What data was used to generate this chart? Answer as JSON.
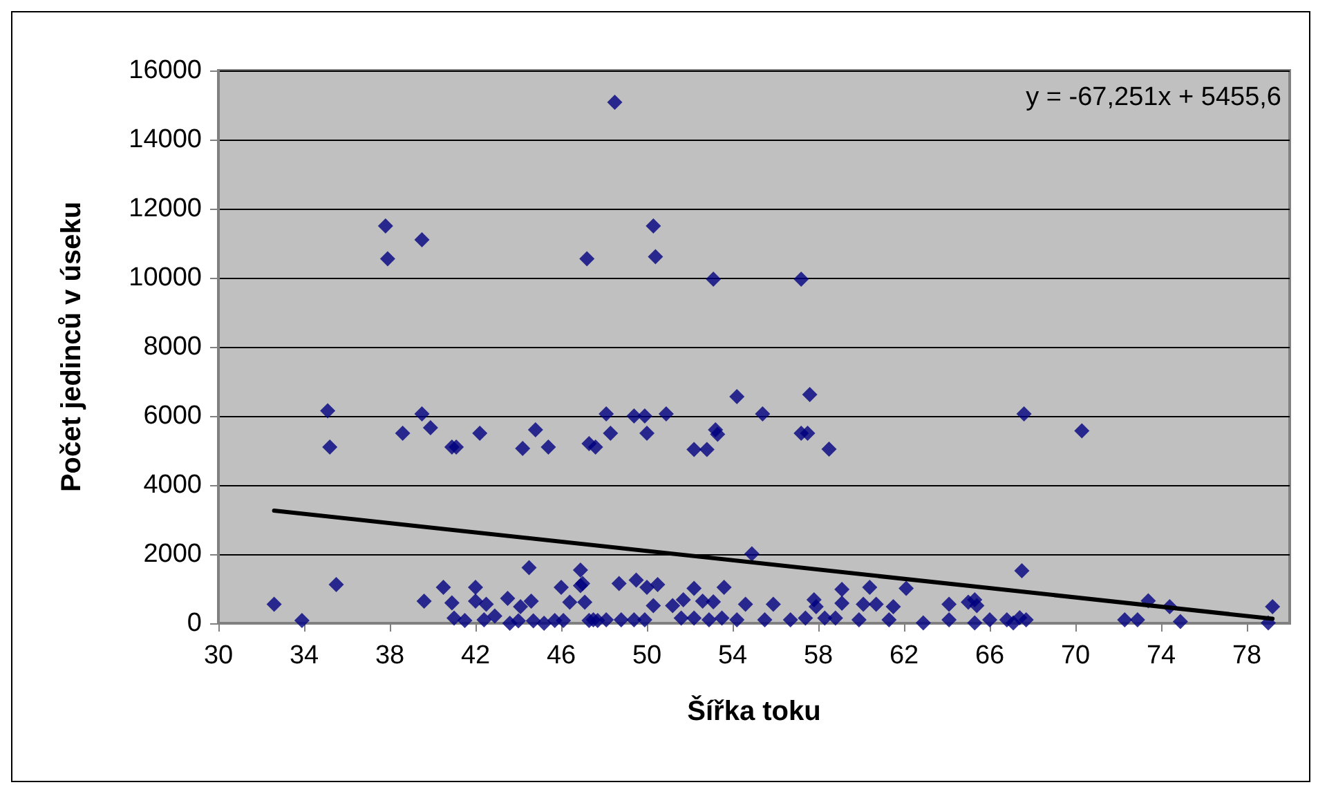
{
  "chart_data": {
    "type": "scatter",
    "xlabel": "Šířka toku",
    "ylabel": "Počet jedinců v úseku",
    "annotations": [
      "y = -67,251x + 5455,6"
    ],
    "xlim": [
      30,
      80
    ],
    "xticks": [
      30,
      34,
      38,
      42,
      46,
      50,
      54,
      58,
      62,
      66,
      70,
      74,
      78
    ],
    "ylim": [
      0,
      16000
    ],
    "yticks": [
      0,
      2000,
      4000,
      6000,
      8000,
      10000,
      12000,
      14000,
      16000
    ],
    "grid": "y",
    "marker": "diamond",
    "series": [
      {
        "color": "#000080",
        "x": [
          35.1,
          35.2,
          37.8,
          37.9,
          39.5,
          39.5,
          38.6,
          39.9,
          40.9,
          41.1,
          42.2,
          44.2,
          44.8,
          45.4,
          47.2,
          47.3,
          47.6,
          48.1,
          48.3,
          48.5,
          49.4,
          49.9,
          50.0,
          50.3,
          50.4,
          50.9,
          52.2,
          52.8,
          53.1,
          53.2,
          53.3,
          54.2,
          55.4,
          57.2,
          57.6,
          57.2,
          57.5,
          58.5,
          67.6,
          70.3,
          32.6,
          33.9,
          35.5,
          39.6,
          40.5,
          40.9,
          41.0,
          41.5,
          42.0,
          42.0,
          42.5,
          42.4,
          42.9,
          43.5,
          43.6,
          44.1,
          44.5,
          44.6,
          44.0,
          44.7,
          45.2,
          46.0,
          46.4,
          46.9,
          46.9,
          47.1,
          45.7,
          46.1,
          47.3,
          47.7,
          47.0,
          48.7,
          49.5,
          50.0,
          50.5,
          50.3,
          51.2,
          51.7,
          52.2,
          52.6,
          53.1,
          53.6,
          54.6,
          54.9,
          55.9,
          56.7,
          57.8,
          57.9,
          59.1,
          59.1,
          60.1,
          60.4,
          60.7,
          61.5,
          62.1,
          61.3,
          62.9,
          64.1,
          64.1,
          65.0,
          47.5,
          48.1,
          48.8,
          49.4,
          49.9,
          51.6,
          52.2,
          52.9,
          53.5,
          54.2,
          55.5,
          57.4,
          58.3,
          58.8,
          59.9,
          65.3,
          65.4,
          65.3,
          66.0,
          66.8,
          67.1,
          67.4,
          67.7,
          67.5,
          72.3,
          72.9,
          73.4,
          74.4,
          74.9,
          79.0,
          79.2
        ],
        "values": [
          6150,
          5100,
          11500,
          10550,
          11100,
          6060,
          5500,
          5660,
          5100,
          5100,
          5500,
          5060,
          5600,
          5100,
          10550,
          5200,
          5100,
          6060,
          5500,
          15080,
          6000,
          6000,
          5500,
          11500,
          10610,
          6060,
          5030,
          5030,
          9960,
          5600,
          5470,
          6560,
          6060,
          9960,
          6620,
          5500,
          5500,
          5040,
          6060,
          5570,
          550,
          80,
          1120,
          640,
          1040,
          590,
          150,
          80,
          1040,
          640,
          550,
          100,
          210,
          720,
          0,
          480,
          1610,
          640,
          70,
          70,
          0,
          1040,
          610,
          1540,
          1090,
          610,
          80,
          80,
          80,
          80,
          1150,
          1150,
          1250,
          1040,
          1120,
          510,
          510,
          680,
          1010,
          640,
          620,
          1040,
          550,
          2010,
          550,
          100,
          680,
          480,
          980,
          580,
          550,
          1040,
          550,
          480,
          1010,
          100,
          10,
          550,
          100,
          610,
          100,
          100,
          100,
          100,
          100,
          150,
          150,
          100,
          150,
          100,
          100,
          150,
          150,
          150,
          100,
          680,
          510,
          10,
          100,
          100,
          10,
          160,
          100,
          1520,
          100,
          100,
          650,
          480,
          50,
          10,
          480
        ]
      },
      {
        "type": "line",
        "color": "#000000",
        "marker": "none",
        "x": [
          32.6,
          79.2
        ],
        "values": [
          3260,
          130
        ]
      }
    ]
  }
}
